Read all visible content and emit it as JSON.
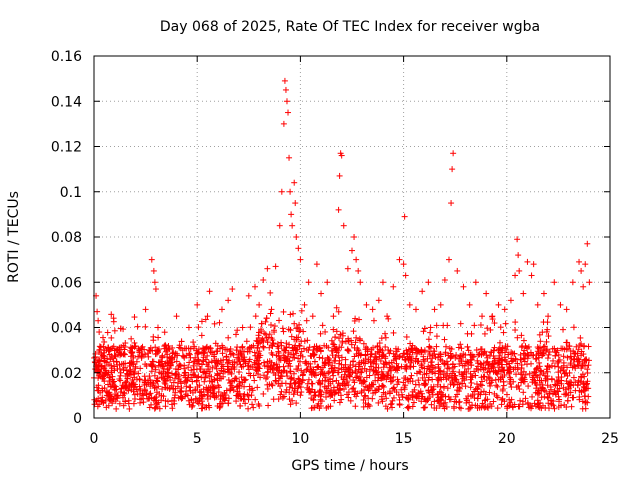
{
  "chart_data": {
    "type": "scatter",
    "title": "Day 068 of 2025, Rate Of TEC Index for receiver wgba",
    "xlabel": "GPS time / hours",
    "ylabel": "ROTI / TECUs",
    "xlim": [
      0,
      25
    ],
    "ylim": [
      0,
      0.16
    ],
    "xticks": [
      0,
      5,
      10,
      15,
      20,
      25
    ],
    "xtick_labels": [
      "0",
      "5",
      "10",
      "15",
      "20",
      "25"
    ],
    "yticks": [
      0,
      0.02,
      0.04,
      0.06,
      0.08,
      0.1,
      0.12,
      0.14,
      0.16
    ],
    "ytick_labels": [
      "0",
      "0.02",
      "0.04",
      "0.06",
      "0.08",
      "0.1",
      "0.12",
      "0.14",
      "0.16"
    ],
    "grid": true,
    "marker": "+",
    "color": "#ff0000",
    "series": [
      {
        "name": "ROTI",
        "x": [
          0.1,
          0.15,
          0.2,
          0.25,
          0.3,
          0.4,
          0.5,
          0.6,
          0.7,
          0.9,
          1.1,
          1.3,
          1.5,
          1.8,
          2.0,
          2.2,
          2.5,
          2.8,
          2.9,
          2.95,
          3.0,
          3.1,
          3.3,
          3.6,
          4.0,
          4.3,
          4.6,
          5.0,
          5.3,
          5.5,
          5.6,
          5.9,
          6.2,
          6.5,
          6.7,
          6.9,
          7.2,
          7.5,
          7.8,
          8.0,
          8.2,
          8.4,
          8.6,
          8.8,
          9.0,
          9.1,
          9.2,
          9.25,
          9.3,
          9.35,
          9.4,
          9.45,
          9.5,
          9.55,
          9.6,
          9.7,
          9.75,
          9.8,
          9.9,
          10.0,
          10.2,
          10.4,
          10.6,
          10.8,
          11.0,
          11.3,
          11.6,
          11.85,
          11.9,
          11.95,
          12.0,
          12.1,
          12.3,
          12.5,
          12.6,
          12.7,
          12.8,
          12.9,
          13.2,
          13.5,
          13.8,
          14.0,
          14.2,
          14.5,
          14.8,
          15.0,
          15.05,
          15.1,
          15.3,
          15.6,
          15.9,
          16.2,
          16.5,
          16.8,
          17.0,
          17.2,
          17.3,
          17.35,
          17.4,
          17.6,
          17.9,
          18.2,
          18.5,
          18.8,
          19.0,
          19.3,
          19.6,
          19.9,
          20.2,
          20.4,
          20.5,
          20.55,
          20.6,
          20.8,
          21.0,
          21.2,
          21.3,
          21.5,
          21.8,
          22.0,
          22.3,
          22.6,
          22.9,
          23.2,
          23.5,
          23.6,
          23.7,
          23.8,
          23.9,
          24.0
        ],
        "y": [
          0.054,
          0.047,
          0.043,
          0.038,
          0.025,
          0.018,
          0.022,
          0.03,
          0.02,
          0.015,
          0.025,
          0.02,
          0.028,
          0.035,
          0.022,
          0.03,
          0.048,
          0.07,
          0.065,
          0.06,
          0.057,
          0.04,
          0.025,
          0.02,
          0.045,
          0.03,
          0.04,
          0.05,
          0.025,
          0.045,
          0.056,
          0.033,
          0.048,
          0.052,
          0.057,
          0.03,
          0.04,
          0.054,
          0.058,
          0.05,
          0.061,
          0.066,
          0.048,
          0.067,
          0.085,
          0.1,
          0.13,
          0.149,
          0.145,
          0.14,
          0.135,
          0.115,
          0.1,
          0.09,
          0.085,
          0.104,
          0.095,
          0.08,
          0.075,
          0.07,
          0.05,
          0.06,
          0.045,
          0.068,
          0.055,
          0.06,
          0.045,
          0.092,
          0.107,
          0.117,
          0.116,
          0.085,
          0.066,
          0.074,
          0.08,
          0.07,
          0.065,
          0.06,
          0.05,
          0.048,
          0.052,
          0.06,
          0.045,
          0.058,
          0.07,
          0.068,
          0.089,
          0.063,
          0.05,
          0.048,
          0.056,
          0.06,
          0.048,
          0.05,
          0.061,
          0.07,
          0.095,
          0.11,
          0.117,
          0.065,
          0.058,
          0.05,
          0.06,
          0.045,
          0.055,
          0.045,
          0.05,
          0.048,
          0.052,
          0.063,
          0.079,
          0.072,
          0.065,
          0.055,
          0.069,
          0.063,
          0.068,
          0.05,
          0.055,
          0.045,
          0.06,
          0.05,
          0.048,
          0.06,
          0.069,
          0.065,
          0.058,
          0.068,
          0.077,
          0.06
        ]
      }
    ],
    "baseline_band": {
      "ymin": 0.004,
      "ymax": 0.032,
      "density_note": "dense cloud of points every few minutes across 0-24 h"
    }
  }
}
